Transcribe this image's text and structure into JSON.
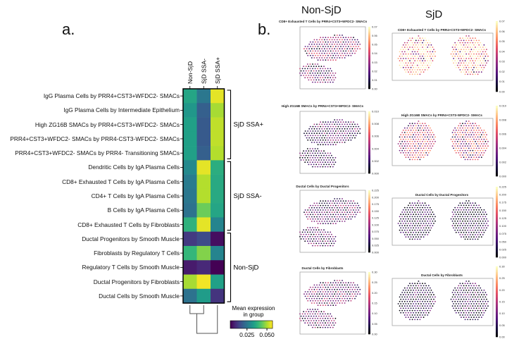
{
  "panel_a_label": "a.",
  "panel_b_label": "b.",
  "chart_data": {
    "type": "heatmap",
    "columns": [
      "Non-SjD",
      "SjD SSA-",
      "SjD SSA+"
    ],
    "rows": [
      "IgG Plasma Cells by PRR4+CST3+WFDC2- SMACs",
      "IgG Plasma Cells by Intermediate Epithelium",
      "High ZG16B SMACs by PRR4+CST3+WFDC2- SMACs",
      "PRR4+CST3+WFDC2- SMACs by PRR4-CST3-WFDC2- SMACs",
      "PRR4+CST3+WFDC2- SMACs by PRR4- Transitioning SMACs",
      "Dendritic Cells by IgA Plasma Cells",
      "CD8+ Exhausted T Cells by IgA Plasma Cells",
      "CD4+ T Cells by IgA Plasma Cells",
      "B Cells by IgA Plasma Cells",
      "CD8+ Exhausted T Cells by Fibroblasts",
      "Ductal Progenitors by Smooth Muscle",
      "Fibroblasts by Regulatory T Cells",
      "Regulatory T Cells by Smooth Muscle",
      "Ductal Progenitors by Fibroblasts",
      "Ductal Cells by Smooth Muscle"
    ],
    "values": [
      [
        0.035,
        0.025,
        0.055
      ],
      [
        0.032,
        0.02,
        0.05
      ],
      [
        0.034,
        0.019,
        0.052
      ],
      [
        0.034,
        0.019,
        0.052
      ],
      [
        0.034,
        0.02,
        0.051
      ],
      [
        0.029,
        0.055,
        0.037
      ],
      [
        0.026,
        0.051,
        0.036
      ],
      [
        0.025,
        0.051,
        0.036
      ],
      [
        0.024,
        0.045,
        0.035
      ],
      [
        0.038,
        0.055,
        0.028
      ],
      [
        0.013,
        0.016,
        0.006
      ],
      [
        0.039,
        0.047,
        0.028
      ],
      [
        0.008,
        0.01,
        0.004
      ],
      [
        0.05,
        0.056,
        0.034
      ],
      [
        0.024,
        0.033,
        0.012
      ]
    ],
    "groups": [
      {
        "label": "SjD SSA+",
        "rows": [
          0,
          4
        ]
      },
      {
        "label": "SjD SSA-",
        "rows": [
          5,
          9
        ]
      },
      {
        "label": "Non-SjD",
        "rows": [
          10,
          14
        ]
      }
    ],
    "colorbar": {
      "title_line1": "Mean expression",
      "title_line2": "in group",
      "range": [
        0.004,
        0.057
      ],
      "ticks": [
        "0.025",
        "0.050"
      ],
      "tick_values": [
        0.025,
        0.05
      ],
      "colormap": "viridis"
    }
  },
  "spatial": {
    "col_headers": [
      "Non-SjD",
      "SjD"
    ],
    "rows": [
      {
        "non_title": "CD8+ Exhausted T Cells by PRR4+CST3+WFDC2- SMACs",
        "sjd_title": "CD8+ Exhausted T Cells by PRR4+CST3+WFDC2- SMACs",
        "ticks": [
          "0.00",
          "0.01",
          "0.02",
          "0.03",
          "0.04",
          "0.05",
          "0.06",
          "0.07"
        ]
      },
      {
        "non_title": "High ZG16B SMACs by PRR4+CST3+WFDC2- SMACs",
        "sjd_title": "High ZG16B SMACs by PRR4+CST3-WFDC2- SMACs",
        "ticks": [
          "0.000",
          "0.002",
          "0.004",
          "0.006",
          "0.008",
          "0.010"
        ]
      },
      {
        "non_title": "Ductal Cells by Ductal Progenitors",
        "sjd_title": "Ductal Cells by Ductal Progenitors",
        "ticks": [
          "0.000",
          "0.025",
          "0.050",
          "0.075",
          "0.100",
          "0.125",
          "0.150",
          "0.175",
          "0.200",
          "0.225"
        ]
      },
      {
        "non_title": "Ductal Cells by Fibroblasts",
        "sjd_title": "Ductal Cells by Fibroblasts",
        "ticks": [
          "0.00",
          "0.05",
          "0.10",
          "0.15",
          "0.20",
          "0.25",
          "0.30"
        ]
      }
    ]
  }
}
